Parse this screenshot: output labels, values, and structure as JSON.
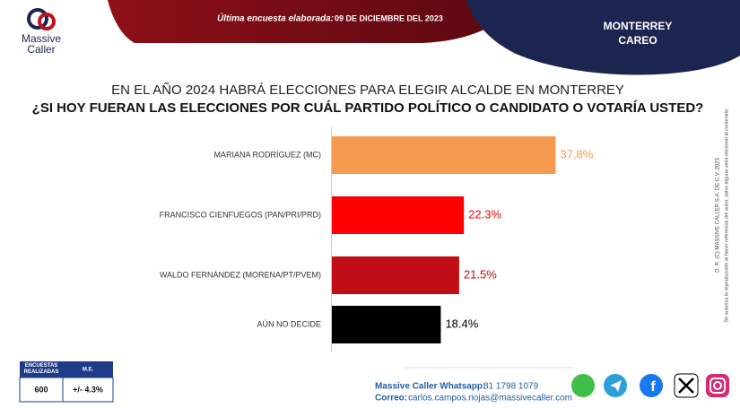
{
  "header": {
    "logo": [
      "Massive",
      "Caller"
    ],
    "survey_label": "Última encuesta elaborada:",
    "survey_date": "09 DE DICIEMBRE DEL 2023",
    "city": "MONTERREY",
    "kind": "CAREO"
  },
  "chart_data": {
    "type": "bar",
    "orientation": "horizontal",
    "title": "EN EL AÑO 2024 HABRÁ ELECCIONES PARA ELEGIR ALCALDE EN MONTERREY",
    "subtitle": "¿SI HOY FUERAN LAS ELECCIONES POR CUÁL PARTIDO POLÍTICO O CANDIDATO O VOTARÍA USTED?",
    "categories": [
      "MARIANA RODRÍGUEZ (MC)",
      "FRANCISCO CIENFUEGOS (PAN/PRI/PRD)",
      "WALDO FERNÁNDEZ (MORENA/PT/PVEM)",
      "AÚN NO DECIDE"
    ],
    "values": [
      37.8,
      22.3,
      21.5,
      18.4
    ],
    "value_labels": [
      "37.8%",
      "22.3%",
      "21.5%",
      "18.4%"
    ],
    "colors": [
      "#f59a4f",
      "#ff0000",
      "#c00d16",
      "#000000"
    ]
  },
  "legal": [
    "D. R. (C) MASSIVE CALLER S.A. DE C.V. 2023",
    "Se autoriza la reproducción al hacer referencia del autor, salvo alguna veda electoral al contenido."
  ],
  "sample": {
    "headers": [
      "ENCUESTAS REALIZADAS",
      "M.E."
    ],
    "values": [
      "600",
      "+/- 4.3%"
    ]
  },
  "footer": {
    "whatsapp_label": "Massive Caller Whatsapp:",
    "whatsapp": "81 1798 1079",
    "mail_label": "Correo:",
    "mail": "carlos.campos.riojas@massivecaller.com"
  }
}
